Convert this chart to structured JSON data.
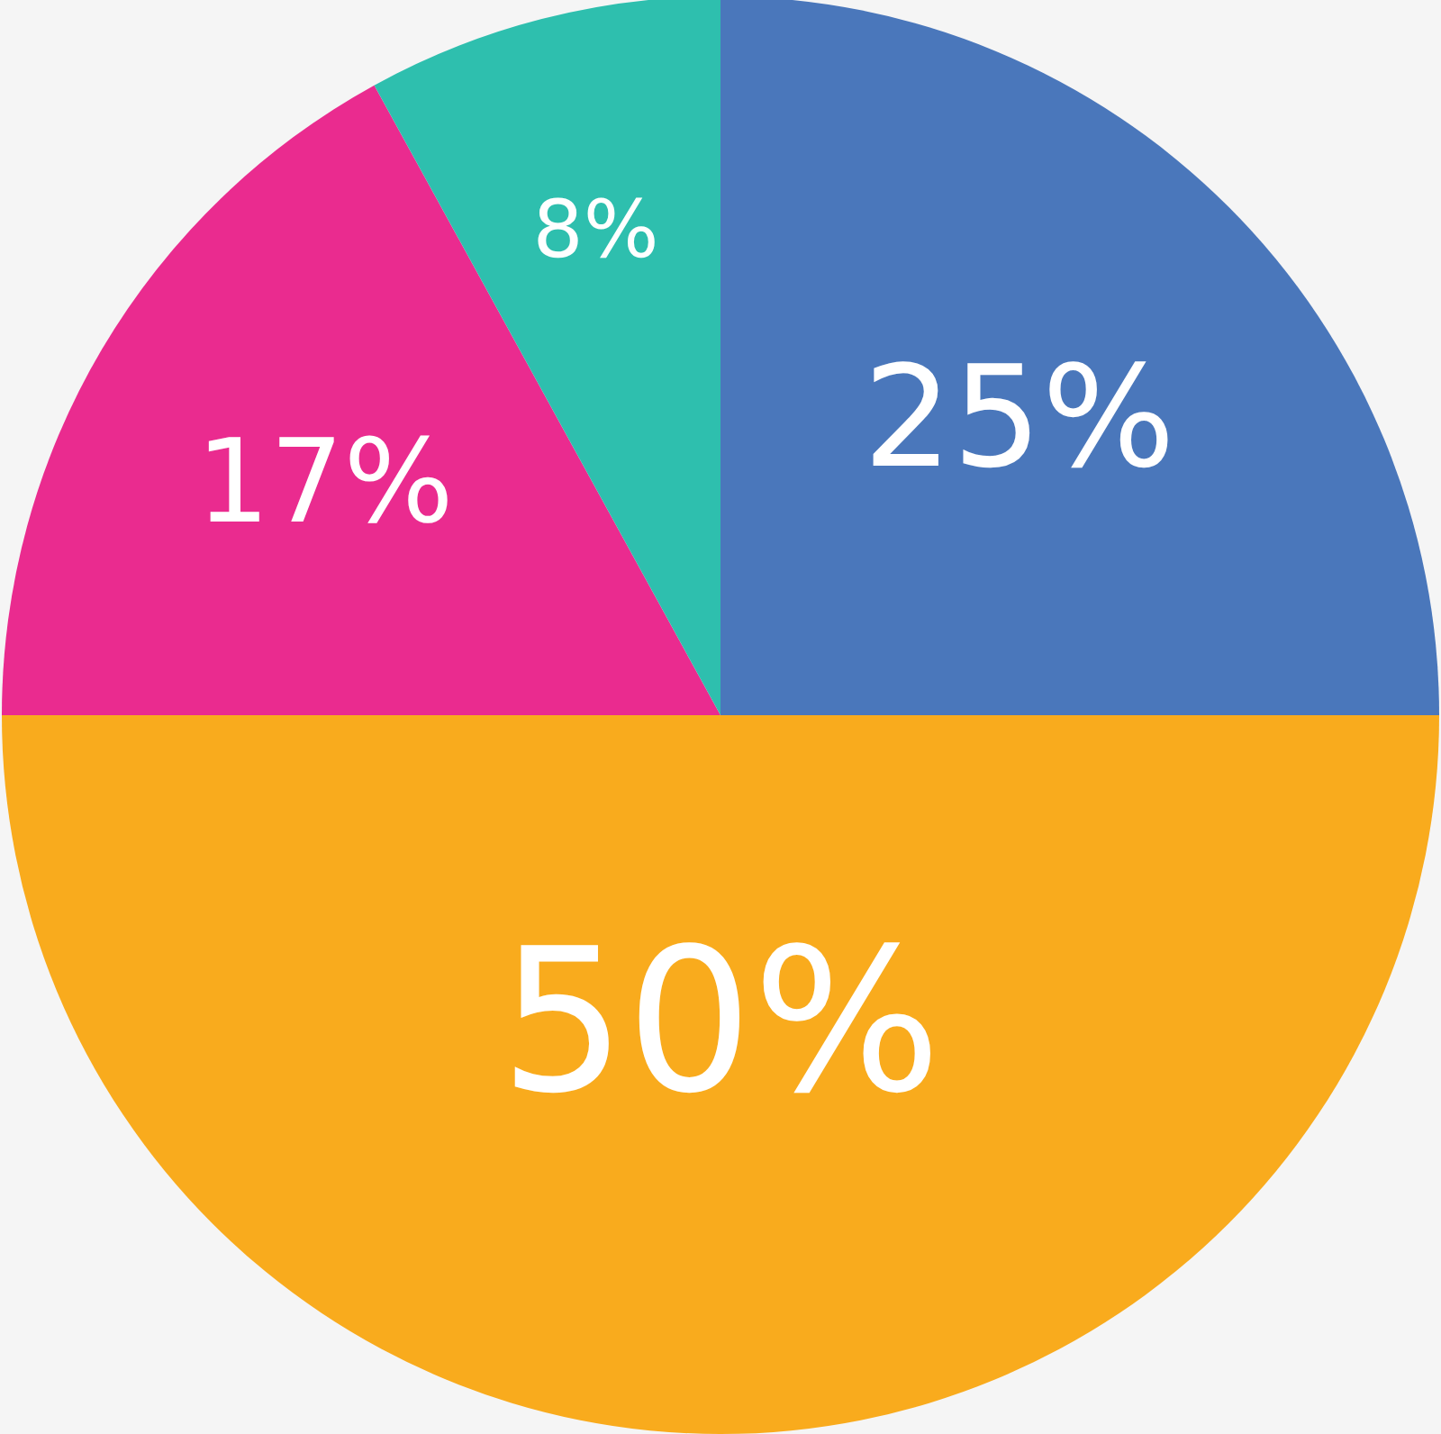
{
  "chart_data": {
    "type": "pie",
    "categories": [
      null,
      null,
      null,
      null
    ],
    "values": [
      25,
      50,
      17,
      8
    ],
    "colors": [
      "#4a77bb",
      "#f9ab1d",
      "#ea2b8f",
      "#2ebfae"
    ],
    "value_labels": [
      "25%",
      "50%",
      "17%",
      "8%"
    ]
  }
}
